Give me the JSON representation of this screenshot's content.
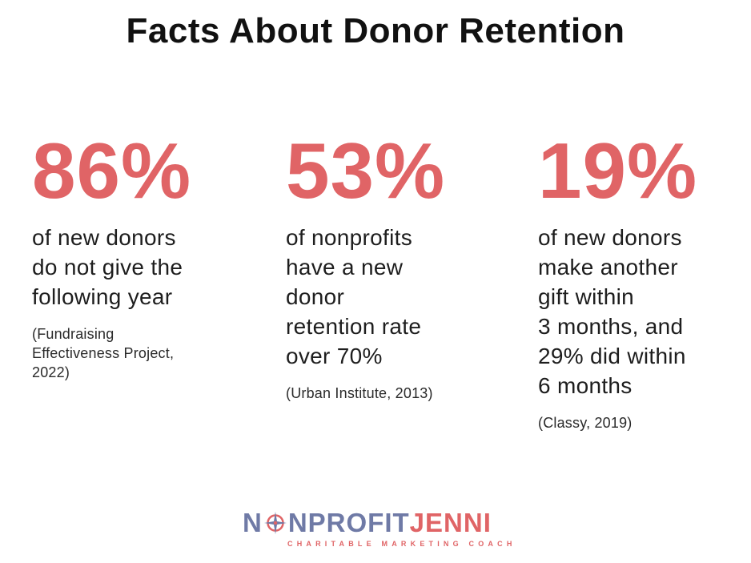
{
  "title": "Facts About Donor Retention",
  "stats": [
    {
      "percent": "86%",
      "description": "of new donors\ndo not give the\nfollowing year",
      "source": "(Fundraising\nEffectiveness Project,\n2022)"
    },
    {
      "percent": "53%",
      "description": "of nonprofits\nhave a new\ndonor\nretention rate\nover 70%",
      "source": "(Urban Institute, 2013)"
    },
    {
      "percent": "19%",
      "description": "of new donors\nmake another\ngift within\n3 months, and\n29% did within\n6 months",
      "source": "(Classy, 2019)"
    }
  ],
  "logo": {
    "n": "N",
    "rest": "NPROFIT",
    "jenni": "JENNI",
    "tagline": "CHARITABLE MARKETING COACH",
    "icon": "compass-icon"
  },
  "colors": {
    "accent": "#e06466",
    "logo_blue": "#6f7aa6",
    "title": "#111111"
  }
}
